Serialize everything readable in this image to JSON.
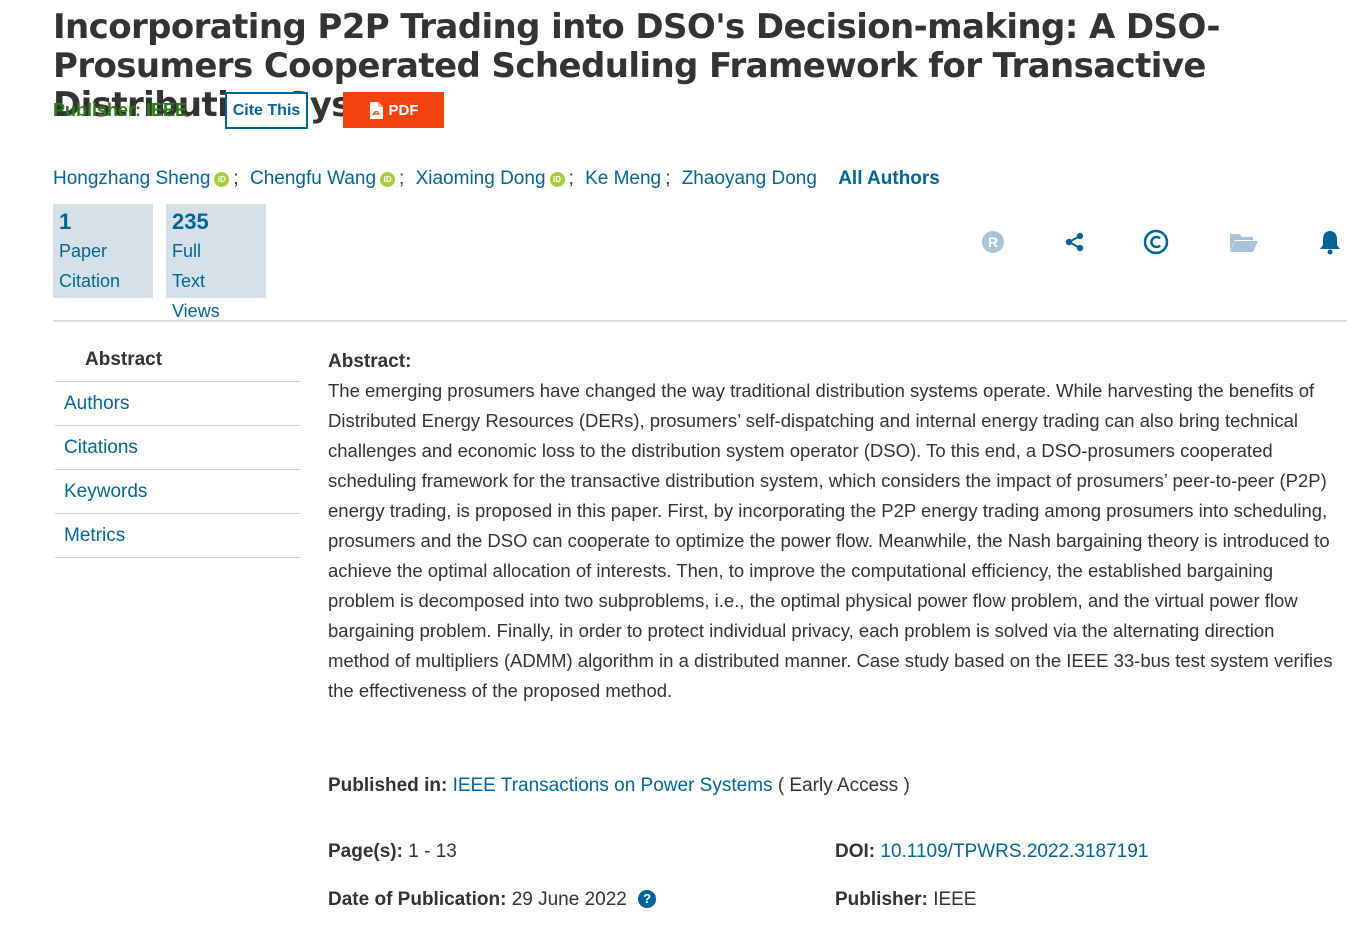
{
  "title": "Incorporating P2P Trading into DSO's Decision-making: A DSO-Prosumers Cooperated Scheduling Framework for Transactive Distribution System",
  "publisher_line": {
    "label": "Publisher:",
    "value": "IEEE"
  },
  "buttons": {
    "cite": "Cite This",
    "pdf": "PDF"
  },
  "authors": [
    {
      "name": "Hongzhang Sheng",
      "orcid": true
    },
    {
      "name": "Chengfu Wang",
      "orcid": true
    },
    {
      "name": "Xiaoming Dong",
      "orcid": true
    },
    {
      "name": "Ke Meng",
      "orcid": false
    },
    {
      "name": "Zhaoyang Dong",
      "orcid": false
    }
  ],
  "orcid_label": "iD",
  "author_separator": ";",
  "all_authors": "All Authors",
  "metrics": [
    {
      "value": "1",
      "label_lines": [
        "Paper",
        "Citation"
      ]
    },
    {
      "value": "235",
      "label_lines": [
        "Full",
        "Text",
        "Views"
      ]
    }
  ],
  "action_icons": [
    "rights-icon",
    "share-icon",
    "copyright-icon",
    "folder-icon",
    "bell-icon"
  ],
  "sidenav": [
    "Abstract",
    "Authors",
    "Citations",
    "Keywords",
    "Metrics"
  ],
  "abstract": {
    "heading": "Abstract:",
    "body": "The emerging prosumers have changed the way traditional distribution systems operate. While harvesting the benefits of Distributed Energy Resources (DERs), prosumers’ self-dispatching and internal energy trading can also bring technical challenges and economic loss to the distribution system operator (DSO). To this end, a DSO-prosumers cooperated scheduling framework for the transactive distribution system, which considers the impact of prosumers’ peer-to-peer (P2P) energy trading, is proposed in this paper. First, by incorporating the P2P energy trading among prosumers into scheduling, prosumers and the DSO can cooperate to optimize the power flow. Meanwhile, the Nash bargaining theory is introduced to achieve the optimal allocation of interests. Then, to improve the computational efficiency, the established bargaining problem is decomposed into two subproblems, i.e., the optimal physical power flow problem, and the virtual power flow bargaining problem. Finally, in order to protect individual privacy, each problem is solved via the alternating direction method of multipliers (ADMM) algorithm in a distributed manner. Case study based on the IEEE 33-bus test system verifies the effectiveness of the proposed method."
  },
  "published_in": {
    "label": "Published in:",
    "journal": "IEEE Transactions on Power Systems",
    "status": "( Early Access )"
  },
  "details": {
    "pages": {
      "label": "Page(s):",
      "value": "1 - 13"
    },
    "date": {
      "label": "Date of Publication:",
      "value": "29 June 2022"
    },
    "doi": {
      "label": "DOI:",
      "value": "10.1109/TPWRS.2022.3187191"
    },
    "publisher": {
      "label": "Publisher:",
      "value": "IEEE"
    }
  },
  "colors": {
    "link": "#006699",
    "publisher_green": "#2b7a1a",
    "pdf": "#f4430f",
    "orcid": "#a6ce39",
    "metric_bg": "#d6e0e8"
  }
}
